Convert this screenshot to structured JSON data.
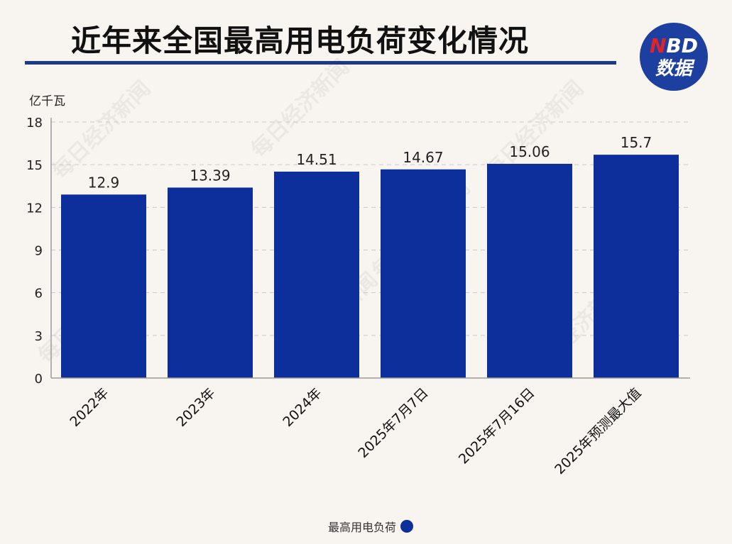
{
  "title": "近年来全国最高用电负荷变化情况",
  "logo": {
    "line1_n": "N",
    "line1_rest": "BD",
    "line2": "数据"
  },
  "watermark": "每日经济新闻",
  "chart_data": {
    "type": "bar",
    "title": "近年来全国最高用电负荷变化情况",
    "ylabel": "亿千瓦",
    "xlabel": "",
    "categories": [
      "2022年",
      "2023年",
      "2024年",
      "2025年7月7日",
      "2025年7月16日",
      "2025年预测最大值"
    ],
    "series": [
      {
        "name": "最高用电负荷",
        "values": [
          12.9,
          13.39,
          14.51,
          14.67,
          15.06,
          15.7
        ],
        "value_labels": [
          "12.9",
          "13.39",
          "14.51",
          "14.67",
          "15.06",
          "15.7"
        ],
        "color": "#0d2f9c"
      }
    ],
    "ylim": [
      0,
      18
    ],
    "yticks": [
      0,
      3,
      6,
      9,
      12,
      15,
      18
    ],
    "grid": true,
    "legend_position": "bottom-center",
    "x_tick_rotation": "45°"
  }
}
